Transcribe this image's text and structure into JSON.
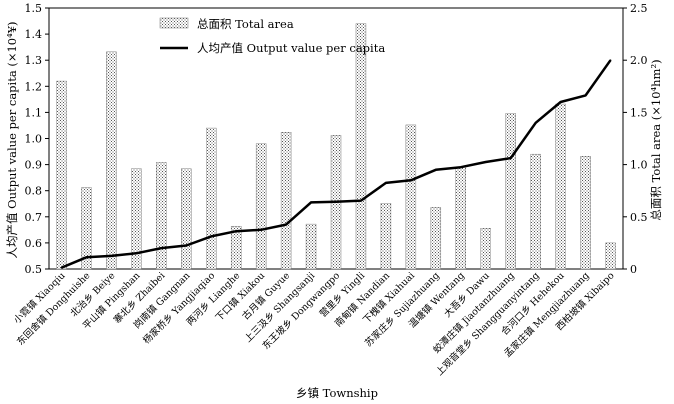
{
  "chart_data": {
    "type": "bar+line",
    "title": "",
    "xlabel": "乡镇 Township",
    "ylabel_left": "人均产值 Output value per capita (×10⁴¥)",
    "ylabel_right": "总面积 Total area (×10⁴hm²)",
    "ylim_left": [
      0.5,
      1.5
    ],
    "ylim_right": [
      0,
      2.5
    ],
    "yticks_left": [
      "0.5",
      "0.6",
      "0.7",
      "0.8",
      "0.9",
      "1.0",
      "1.1",
      "1.2",
      "1.3",
      "1.4",
      "1.5"
    ],
    "yticks_right": [
      "0",
      "0.5",
      "1.0",
      "1.5",
      "2.0",
      "2.5"
    ],
    "legend_position": "top-center",
    "categories": [
      "小霓镇 Xiaoqiu",
      "东回舍镇 Donghuishe",
      "北治乡 Beiye",
      "平山镇 Pingshan",
      "寨北乡 Zhaibei",
      "岗南镇 Gangnan",
      "杨家桥乡 Yangjiaqiao",
      "两河乡 Lianghe",
      "下口镇 Xiakou",
      "古月镇 Guyue",
      "上三汲乡 Shangsanji",
      "东王坡乡 Dongwangpo",
      "营里乡 Yingli",
      "南甸镇 Nandian",
      "下槐镇 Xiahuai",
      "苏家庄乡 Sujiazhuang",
      "温塘镇 Wentang",
      "大吾乡 Dawu",
      "蛟潭庄镇 Jiaotanzhuang",
      "上观音堂乡 Shangguanyintang",
      "合河口乡 Hehekou",
      "孟家庄镇 Mengjiazhuang",
      "西柏坡镇 Xibaipo"
    ],
    "series": [
      {
        "name": "总面积 Total area",
        "type": "bar",
        "axis": "right",
        "values": [
          1.8,
          0.78,
          2.08,
          0.96,
          1.02,
          0.96,
          1.35,
          0.41,
          1.2,
          1.31,
          0.43,
          1.28,
          2.35,
          0.63,
          1.38,
          0.59,
          0.98,
          0.39,
          1.49,
          1.1,
          1.58,
          1.08,
          0.25
        ]
      },
      {
        "name": "人均产值 Output value per capita",
        "type": "line",
        "axis": "left",
        "values": [
          0.505,
          0.545,
          0.55,
          0.56,
          0.58,
          0.59,
          0.625,
          0.645,
          0.65,
          0.67,
          0.755,
          0.758,
          0.762,
          0.83,
          0.84,
          0.88,
          0.89,
          0.91,
          0.925,
          1.06,
          1.14,
          1.165,
          1.3
        ]
      }
    ]
  }
}
